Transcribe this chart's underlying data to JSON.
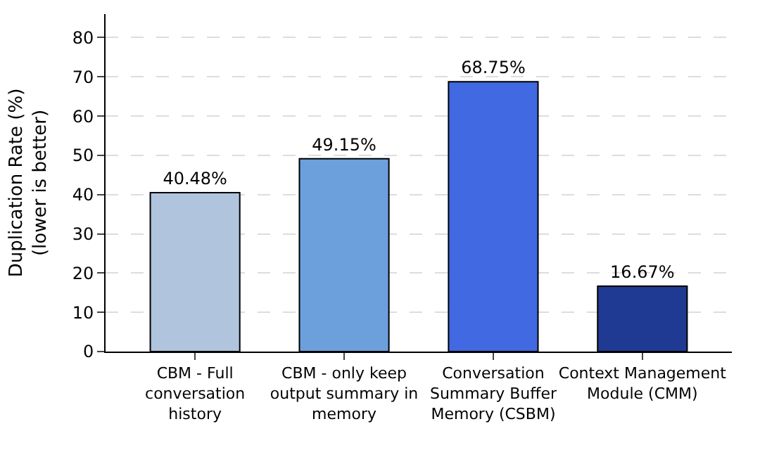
{
  "chart_data": {
    "type": "bar",
    "ylabel": "Duplication Rate (%) (lower is better)",
    "categories": [
      "CBM - Full conversation history",
      "CBM - only keep output summary in memory",
      "Conversation Summary Buffer Memory (CSBM)",
      "Context Management Module (CMM)"
    ],
    "values": [
      40.48,
      49.15,
      68.75,
      16.67
    ],
    "value_labels": [
      "40.48%",
      "49.15%",
      "68.75%",
      "16.67%"
    ],
    "colors": [
      "#b0c4de",
      "#6ca0dc",
      "#4169e1",
      "#1f3a93"
    ],
    "ylim": [
      0,
      86
    ],
    "yticks": [
      0,
      10,
      20,
      30,
      40,
      50,
      60,
      70,
      80
    ],
    "grid": "y"
  }
}
